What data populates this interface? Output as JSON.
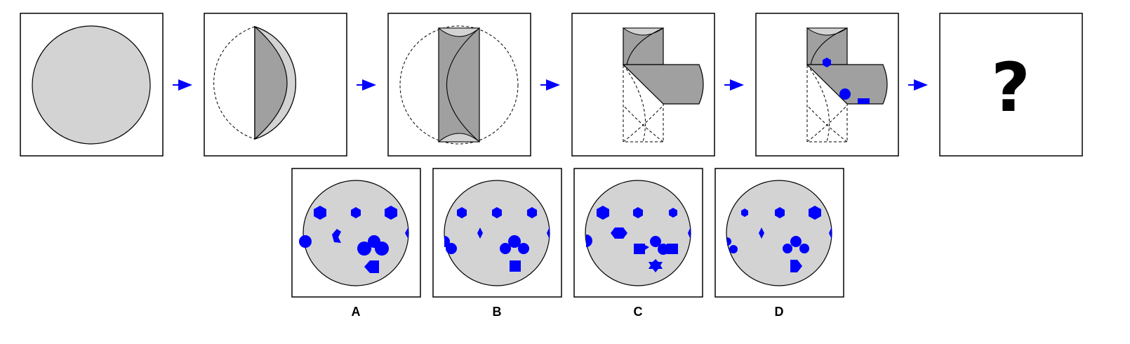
{
  "colors": {
    "light_gray": "#d3d3d3",
    "dark_gray": "#a0a0a0",
    "accent_blue": "#0000ff",
    "outline": "#000000"
  },
  "sequence": {
    "panels": [
      {
        "name": "step-1-full-circle"
      },
      {
        "name": "step-2-first-fold"
      },
      {
        "name": "step-3-second-fold"
      },
      {
        "name": "step-4-third-fold"
      },
      {
        "name": "step-5-punched"
      },
      {
        "name": "step-6-unknown",
        "symbol": "?"
      }
    ],
    "arrow_icon": "arrow-right-icon"
  },
  "choices": [
    {
      "label": "A"
    },
    {
      "label": "B"
    },
    {
      "label": "C"
    },
    {
      "label": "D"
    }
  ]
}
